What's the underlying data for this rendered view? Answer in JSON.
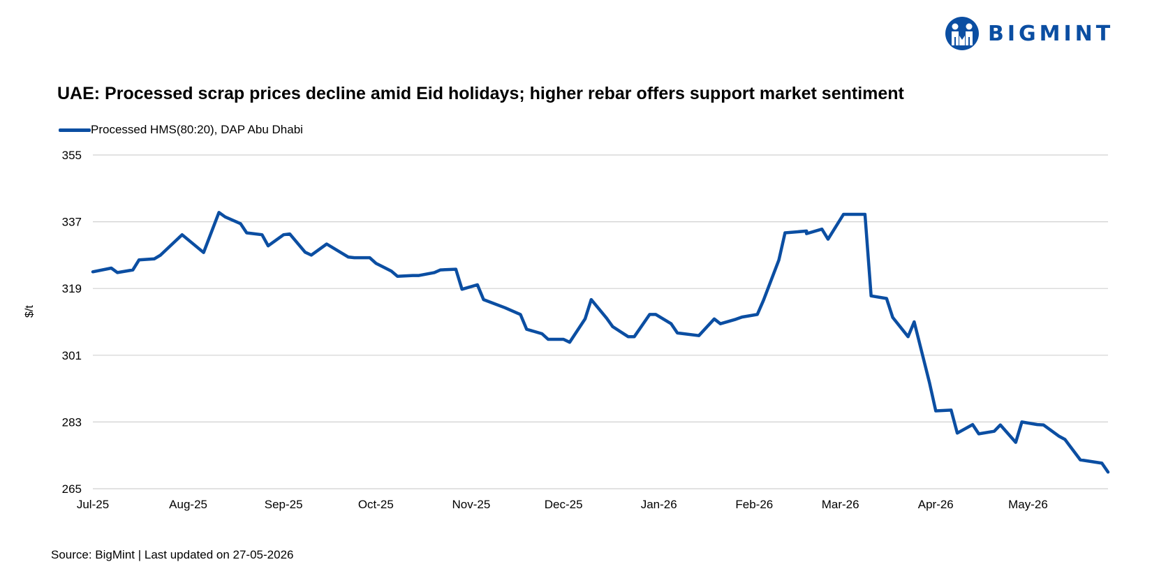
{
  "brand": {
    "name": "BIGMINT",
    "color": "#0b4ea2",
    "logo_icon": "bigmint-logo-icon"
  },
  "title": "UAE: Processed scrap prices decline amid Eid holidays; higher rebar offers support market sentiment",
  "footer": "Source: BigMint | Last updated on 27-05-2026",
  "chart_data": {
    "type": "line",
    "ylabel": "$/t",
    "ylim": [
      265,
      355
    ],
    "yticks": [
      355,
      337,
      319,
      301,
      283,
      265
    ],
    "xlim": [
      "2025-07-01",
      "2026-05-27"
    ],
    "xticks": [
      {
        "label": "Jul-25",
        "date": "2025-07-01"
      },
      {
        "label": "Aug-25",
        "date": "2025-08-01"
      },
      {
        "label": "Sep-25",
        "date": "2025-09-01"
      },
      {
        "label": "Oct-25",
        "date": "2025-10-01"
      },
      {
        "label": "Nov-25",
        "date": "2025-11-01"
      },
      {
        "label": "Dec-25",
        "date": "2025-12-01"
      },
      {
        "label": "Jan-26",
        "date": "2026-01-01"
      },
      {
        "label": "Feb-26",
        "date": "2026-02-01"
      },
      {
        "label": "Mar-26",
        "date": "2026-03-01"
      },
      {
        "label": "Apr-26",
        "date": "2026-04-01"
      },
      {
        "label": "May-26",
        "date": "2026-05-01"
      }
    ],
    "grid": true,
    "legend_position": "top-left",
    "series": [
      {
        "name": "Processed HMS(80:20), DAP Abu Dhabi",
        "color": "#0b4ea2",
        "points": [
          [
            "2025-07-01",
            323.5
          ],
          [
            "2025-07-07",
            324.5
          ],
          [
            "2025-07-09",
            323.3
          ],
          [
            "2025-07-14",
            324.0
          ],
          [
            "2025-07-16",
            326.7
          ],
          [
            "2025-07-21",
            327.0
          ],
          [
            "2025-07-23",
            328.0
          ],
          [
            "2025-07-30",
            333.5
          ],
          [
            "2025-08-06",
            328.7
          ],
          [
            "2025-08-11",
            339.5
          ],
          [
            "2025-08-13",
            338.3
          ],
          [
            "2025-08-18",
            336.5
          ],
          [
            "2025-08-20",
            334.0
          ],
          [
            "2025-08-25",
            333.5
          ],
          [
            "2025-08-27",
            330.5
          ],
          [
            "2025-09-01",
            333.5
          ],
          [
            "2025-09-03",
            333.7
          ],
          [
            "2025-09-08",
            328.8
          ],
          [
            "2025-09-10",
            328.0
          ],
          [
            "2025-09-15",
            331.0
          ],
          [
            "2025-09-22",
            327.5
          ],
          [
            "2025-09-24",
            327.3
          ],
          [
            "2025-09-29",
            327.3
          ],
          [
            "2025-10-01",
            325.8
          ],
          [
            "2025-10-06",
            323.7
          ],
          [
            "2025-10-08",
            322.3
          ],
          [
            "2025-10-13",
            322.5
          ],
          [
            "2025-10-15",
            322.5
          ],
          [
            "2025-10-20",
            323.3
          ],
          [
            "2025-10-22",
            324.0
          ],
          [
            "2025-10-27",
            324.2
          ],
          [
            "2025-10-29",
            318.8
          ],
          [
            "2025-11-03",
            320.0
          ],
          [
            "2025-11-05",
            316.0
          ],
          [
            "2025-11-12",
            313.8
          ],
          [
            "2025-11-17",
            312.0
          ],
          [
            "2025-11-19",
            308.0
          ],
          [
            "2025-11-24",
            306.8
          ],
          [
            "2025-11-26",
            305.3
          ],
          [
            "2025-12-01",
            305.3
          ],
          [
            "2025-12-03",
            304.5
          ],
          [
            "2025-12-08",
            310.8
          ],
          [
            "2025-12-10",
            316.0
          ],
          [
            "2025-12-15",
            311.0
          ],
          [
            "2025-12-17",
            308.7
          ],
          [
            "2025-12-22",
            306.0
          ],
          [
            "2025-12-24",
            306.0
          ],
          [
            "2025-12-29",
            312.0
          ],
          [
            "2025-12-31",
            312.0
          ],
          [
            "2026-01-05",
            309.5
          ],
          [
            "2026-01-07",
            307.0
          ],
          [
            "2026-01-14",
            306.3
          ],
          [
            "2026-01-19",
            310.8
          ],
          [
            "2026-01-21",
            309.5
          ],
          [
            "2026-01-26",
            310.7
          ],
          [
            "2026-01-28",
            311.3
          ],
          [
            "2026-02-02",
            312.0
          ],
          [
            "2026-02-04",
            315.8
          ],
          [
            "2026-02-09",
            326.7
          ],
          [
            "2026-02-11",
            334.0
          ],
          [
            "2026-02-18",
            334.5
          ],
          [
            "2026-02-18",
            333.8
          ],
          [
            "2026-02-23",
            335.0
          ],
          [
            "2026-02-25",
            332.3
          ],
          [
            "2026-03-02",
            339.0
          ],
          [
            "2026-03-04",
            339.0
          ],
          [
            "2026-03-09",
            339.0
          ],
          [
            "2026-03-11",
            317.0
          ],
          [
            "2026-03-16",
            316.3
          ],
          [
            "2026-03-18",
            311.2
          ],
          [
            "2026-03-23",
            306.0
          ],
          [
            "2026-03-25",
            310.0
          ],
          [
            "2026-03-30",
            293.5
          ],
          [
            "2026-04-01",
            286.0
          ],
          [
            "2026-04-06",
            286.2
          ],
          [
            "2026-04-08",
            280.0
          ],
          [
            "2026-04-13",
            282.3
          ],
          [
            "2026-04-15",
            279.8
          ],
          [
            "2026-04-20",
            280.5
          ],
          [
            "2026-04-22",
            282.2
          ],
          [
            "2026-04-27",
            277.5
          ],
          [
            "2026-04-29",
            283.0
          ],
          [
            "2026-05-04",
            282.3
          ],
          [
            "2026-05-06",
            282.2
          ],
          [
            "2026-05-11",
            279.2
          ],
          [
            "2026-05-13",
            278.3
          ],
          [
            "2026-05-18",
            272.8
          ],
          [
            "2026-05-25",
            271.9
          ],
          [
            "2026-05-27",
            269.5
          ]
        ]
      }
    ]
  }
}
